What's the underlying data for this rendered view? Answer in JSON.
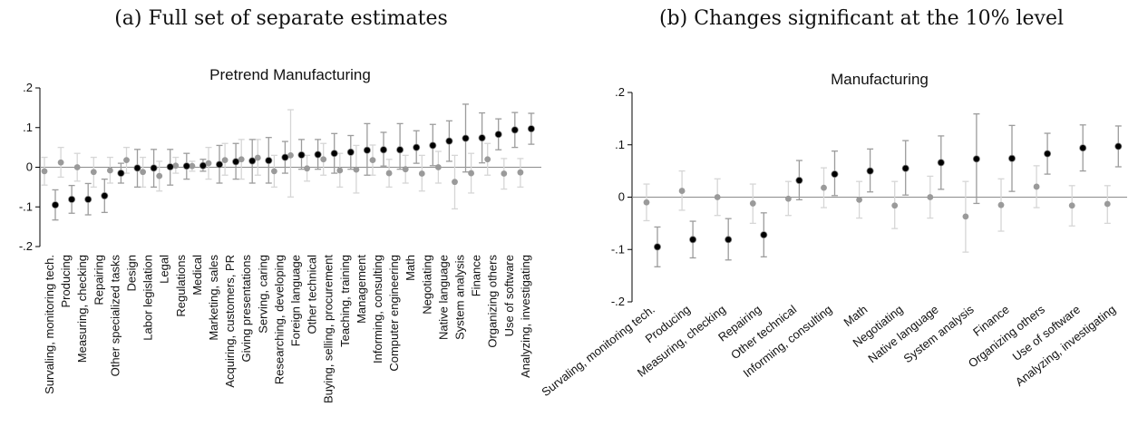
{
  "panels": {
    "a_caption": "(a) Full set of separate estimates",
    "b_caption": "(b) Changes significant at the 10% level"
  },
  "chart_data": [
    {
      "type": "scatter",
      "title": "Pretrend Manufacturing",
      "ylim": [
        -0.2,
        0.2
      ],
      "yticks": [
        0.2,
        0.1,
        0,
        -0.1,
        -0.2
      ],
      "ytick_labels": [
        ".2",
        ".1",
        "0",
        "-.1",
        "-.2"
      ],
      "grid": false,
      "categories": [
        "Survaling, monitoring tech.",
        "Producing",
        "Measuring, checking",
        "Repairing",
        "Other specialized tasks",
        "Design",
        "Labor legislation",
        "Legal",
        "Regulations",
        "Medical",
        "Marketing, sales",
        "Acquiring, customers, PR",
        "Giving presentations",
        "Serving, caring",
        "Researching, developing",
        "Foreign language",
        "Other technical",
        "Buying, selling, procurement",
        "Teaching, training",
        "Management",
        "Informing, consulting",
        "Computer engineering",
        "Math",
        "Negotiating",
        "Native language",
        "System analysis",
        "Finance",
        "Organizing others",
        "Use of software",
        "Analyzing, investigating"
      ],
      "series": [
        {
          "role": "pretrend",
          "color": "#9a9a9a",
          "values": [
            -0.01,
            0.012,
            0.0,
            -0.012,
            -0.008,
            0.018,
            -0.012,
            -0.022,
            0.004,
            0.003,
            0.01,
            0.018,
            0.02,
            0.024,
            -0.01,
            0.03,
            -0.003,
            0.02,
            -0.008,
            -0.006,
            0.018,
            -0.015,
            -0.005,
            -0.016,
            0.0,
            -0.037,
            -0.015,
            0.02,
            -0.016,
            -0.013
          ],
          "lower": [
            -0.045,
            -0.025,
            -0.035,
            -0.05,
            -0.04,
            -0.015,
            -0.05,
            -0.06,
            -0.015,
            -0.01,
            -0.03,
            -0.02,
            -0.03,
            -0.02,
            -0.05,
            -0.075,
            -0.035,
            -0.02,
            -0.05,
            -0.065,
            -0.02,
            -0.05,
            -0.04,
            -0.06,
            -0.04,
            -0.105,
            -0.065,
            -0.02,
            -0.055,
            -0.05
          ],
          "upper": [
            0.025,
            0.05,
            0.035,
            0.025,
            0.025,
            0.05,
            0.025,
            0.015,
            0.025,
            0.015,
            0.05,
            0.06,
            0.07,
            0.07,
            0.03,
            0.145,
            0.03,
            0.06,
            0.035,
            0.055,
            0.056,
            0.02,
            0.03,
            0.03,
            0.04,
            0.03,
            0.035,
            0.06,
            0.022,
            0.022
          ]
        },
        {
          "role": "estimate",
          "color": "#000000",
          "values": [
            -0.095,
            -0.081,
            -0.081,
            -0.072,
            -0.015,
            -0.002,
            -0.002,
            0.001,
            0.003,
            0.004,
            0.007,
            0.014,
            0.016,
            0.017,
            0.025,
            0.031,
            0.032,
            0.035,
            0.038,
            0.043,
            0.044,
            0.044,
            0.05,
            0.055,
            0.066,
            0.073,
            0.074,
            0.083,
            0.094,
            0.097
          ],
          "lower": [
            -0.133,
            -0.116,
            -0.12,
            -0.114,
            -0.04,
            -0.05,
            -0.05,
            -0.045,
            -0.03,
            -0.01,
            -0.04,
            -0.03,
            -0.04,
            -0.04,
            -0.015,
            -0.005,
            -0.005,
            -0.015,
            -0.005,
            -0.02,
            0.003,
            -0.005,
            0.01,
            0.004,
            0.015,
            -0.012,
            0.011,
            0.044,
            0.05,
            0.058
          ],
          "upper": [
            -0.057,
            -0.046,
            -0.041,
            -0.03,
            0.01,
            0.045,
            0.045,
            0.045,
            0.035,
            0.02,
            0.055,
            0.06,
            0.07,
            0.075,
            0.065,
            0.07,
            0.07,
            0.085,
            0.08,
            0.11,
            0.088,
            0.11,
            0.092,
            0.108,
            0.117,
            0.159,
            0.137,
            0.122,
            0.138,
            0.136
          ]
        }
      ]
    },
    {
      "type": "scatter",
      "title": "Manufacturing",
      "ylim": [
        -0.2,
        0.2
      ],
      "yticks": [
        0.2,
        0.1,
        0,
        -0.1,
        -0.2
      ],
      "ytick_labels": [
        ".2",
        ".1",
        "0",
        "-.1",
        "-.2"
      ],
      "grid": false,
      "categories": [
        "Survaling, monitoring tech.",
        "Producing",
        "Measuring, checking",
        "Repairing",
        "Other technical",
        "Informing, consulting",
        "Math",
        "Negotiating",
        "Native language",
        "System analysis",
        "Finance",
        "Organizing others",
        "Use of software",
        "Analyzing, investigating"
      ],
      "series": [
        {
          "role": "pretrend",
          "color": "#9a9a9a",
          "values": [
            -0.01,
            0.012,
            0.0,
            -0.012,
            -0.003,
            0.018,
            -0.005,
            -0.016,
            0.0,
            -0.037,
            -0.015,
            0.02,
            -0.016,
            -0.013
          ],
          "lower": [
            -0.045,
            -0.025,
            -0.035,
            -0.05,
            -0.035,
            -0.02,
            -0.04,
            -0.06,
            -0.04,
            -0.105,
            -0.065,
            -0.02,
            -0.055,
            -0.05
          ],
          "upper": [
            0.025,
            0.05,
            0.035,
            0.025,
            0.03,
            0.056,
            0.03,
            0.03,
            0.04,
            0.03,
            0.035,
            0.06,
            0.022,
            0.022
          ]
        },
        {
          "role": "estimate",
          "color": "#000000",
          "values": [
            -0.095,
            -0.081,
            -0.081,
            -0.072,
            0.032,
            0.044,
            0.05,
            0.055,
            0.066,
            0.073,
            0.074,
            0.083,
            0.094,
            0.097
          ],
          "lower": [
            -0.133,
            -0.116,
            -0.12,
            -0.114,
            -0.005,
            0.003,
            0.01,
            0.004,
            0.015,
            -0.012,
            0.011,
            0.044,
            0.05,
            0.058
          ],
          "upper": [
            -0.057,
            -0.046,
            -0.041,
            -0.03,
            0.07,
            0.088,
            0.092,
            0.108,
            0.117,
            0.159,
            0.137,
            0.122,
            0.138,
            0.136
          ]
        }
      ]
    }
  ]
}
